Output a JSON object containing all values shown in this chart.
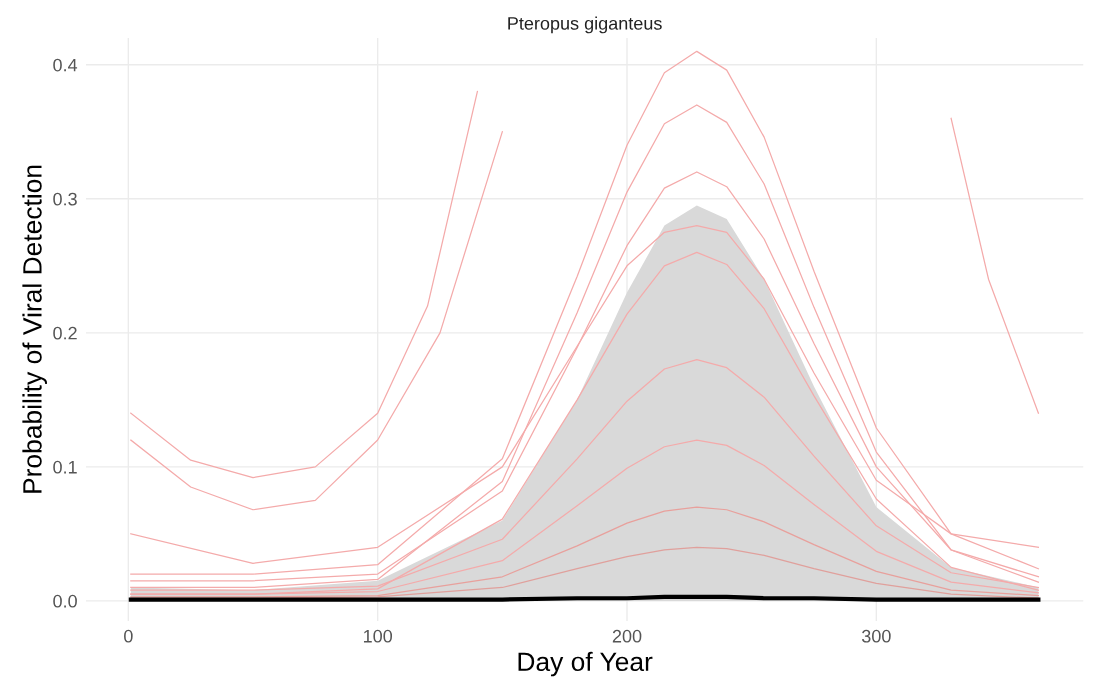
{
  "chart_data": {
    "type": "line",
    "title": "Pteropus giganteus",
    "xlabel": "Day of Year",
    "ylabel": "Probability of Viral Detection",
    "xlim": [
      -17,
      383
    ],
    "ylim": [
      -0.015,
      0.42
    ],
    "xticks": [
      0,
      100,
      200,
      300
    ],
    "yticks": [
      {
        "value": 0,
        "label": "0.0"
      },
      0.1,
      0.2,
      0.3,
      0.4
    ],
    "grid": true,
    "x": [
      1,
      50,
      100,
      150,
      180,
      200,
      215,
      228,
      240,
      255,
      275,
      300,
      330,
      365
    ],
    "series": [
      {
        "color": "#f4aaaa",
        "x": [
          1,
          25,
          50,
          75,
          100,
          120,
          140
        ],
        "values": [
          0.14,
          0.105,
          0.092,
          0.1,
          0.14,
          0.22,
          0.38
        ]
      },
      {
        "color": "#f4aaaa",
        "x": [
          1,
          25,
          50,
          75,
          100,
          125,
          150
        ],
        "values": [
          0.12,
          0.085,
          0.068,
          0.075,
          0.12,
          0.2,
          0.35
        ]
      },
      {
        "color": "#f4aaaa",
        "x": [
          330,
          345,
          365
        ],
        "values": [
          0.36,
          0.24,
          0.14
        ]
      },
      {
        "color": "#f4aaaa",
        "values": [
          0.02,
          0.02,
          0.027,
          0.106,
          0.242,
          0.34,
          0.394,
          0.41,
          0.396,
          0.346,
          0.246,
          0.129,
          0.05,
          0.024
        ]
      },
      {
        "color": "#f4aaaa",
        "values": [
          0.01,
          0.01,
          0.016,
          0.089,
          0.215,
          0.305,
          0.356,
          0.37,
          0.357,
          0.311,
          0.219,
          0.111,
          0.038,
          0.014
        ]
      },
      {
        "color": "#f4aaaa",
        "values": [
          0.015,
          0.015,
          0.02,
          0.082,
          0.189,
          0.265,
          0.308,
          0.32,
          0.309,
          0.27,
          0.192,
          0.1,
          0.038,
          0.018
        ]
      },
      {
        "color": "#f4aaaa",
        "values": [
          0.05,
          0.028,
          0.04,
          0.1,
          0.19,
          0.25,
          0.275,
          0.28,
          0.275,
          0.24,
          0.17,
          0.09,
          0.05,
          0.04
        ]
      },
      {
        "color": "#f4aaaa",
        "values": [
          0.005,
          0.005,
          0.009,
          0.061,
          0.15,
          0.214,
          0.25,
          0.26,
          0.251,
          0.218,
          0.153,
          0.076,
          0.025,
          0.008
        ]
      },
      {
        "color": "#f4aaaa",
        "values": [
          0.008,
          0.008,
          0.011,
          0.046,
          0.106,
          0.149,
          0.173,
          0.18,
          0.174,
          0.152,
          0.108,
          0.056,
          0.021,
          0.01
        ]
      },
      {
        "color": "#f4aaaa",
        "values": [
          0.005,
          0.005,
          0.007,
          0.03,
          0.071,
          0.099,
          0.115,
          0.12,
          0.116,
          0.101,
          0.072,
          0.037,
          0.014,
          0.006
        ]
      },
      {
        "color": "#e8a09c",
        "values": [
          0.003,
          0.003,
          0.004,
          0.018,
          0.041,
          0.058,
          0.067,
          0.07,
          0.068,
          0.059,
          0.042,
          0.022,
          0.008,
          0.004
        ]
      },
      {
        "color": "#e0a09c",
        "values": [
          0.002,
          0.002,
          0.003,
          0.01,
          0.024,
          0.033,
          0.038,
          0.04,
          0.039,
          0.034,
          0.024,
          0.013,
          0.005,
          0.002
        ]
      },
      {
        "color": "#000000",
        "values": [
          0.001,
          0.001,
          0.001,
          0.001,
          0.002,
          0.002,
          0.003,
          0.003,
          0.003,
          0.002,
          0.002,
          0.001,
          0.001,
          0.001
        ],
        "lower": [
          0,
          0,
          0,
          0,
          0,
          0,
          0,
          0,
          0,
          0,
          0,
          0,
          0,
          0
        ],
        "upper": [
          0.01,
          0.008,
          0.015,
          0.06,
          0.15,
          0.23,
          0.28,
          0.295,
          0.285,
          0.24,
          0.16,
          0.07,
          0.025,
          0.01
        ]
      }
    ]
  }
}
